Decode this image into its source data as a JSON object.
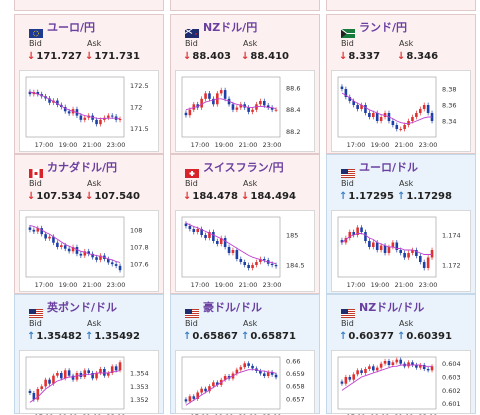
{
  "panels": [
    {
      "pair": "ユーロ/円",
      "flag": "eu-jp-flag",
      "theme": "pink",
      "bid_label": "Bid",
      "ask_label": "Ask",
      "bid": "171.727",
      "ask": "171.731",
      "direction": "down",
      "chart_data": {
        "type": "candlestick",
        "x_ticks": [
          "17:00",
          "19:00",
          "21:00",
          "23:00"
        ],
        "y_ticks": [
          "172.5",
          "172",
          "171.5"
        ],
        "ylim": [
          171.3,
          172.7
        ],
        "closes": [
          172.3,
          172.35,
          172.3,
          172.25,
          172.2,
          172.1,
          172.15,
          172.05,
          172.0,
          171.9,
          171.85,
          171.95,
          171.8,
          171.7,
          171.75,
          171.8,
          171.7,
          171.6,
          171.7,
          171.75,
          171.8,
          171.78,
          171.7,
          171.72
        ],
        "ma": [
          172.35,
          172.33,
          172.3,
          172.27,
          172.23,
          172.18,
          172.13,
          172.08,
          172.02,
          171.97,
          171.93,
          171.9,
          171.87,
          171.83,
          171.8,
          171.78,
          171.76,
          171.74,
          171.73,
          171.73,
          171.74,
          171.74,
          171.74,
          171.73
        ]
      }
    },
    {
      "pair": "NZドル/円",
      "flag": "nz-jp-flag",
      "theme": "pink",
      "bid_label": "Bid",
      "ask_label": "Ask",
      "bid": "88.403",
      "ask": "88.410",
      "direction": "down",
      "chart_data": {
        "type": "candlestick",
        "x_ticks": [
          "17:00",
          "19:00",
          "21:00",
          "23:00"
        ],
        "y_ticks": [
          "88.6",
          "88.4",
          "88.2"
        ],
        "ylim": [
          88.15,
          88.7
        ],
        "closes": [
          88.35,
          88.4,
          88.45,
          88.42,
          88.5,
          88.55,
          88.5,
          88.45,
          88.55,
          88.58,
          88.5,
          88.45,
          88.4,
          88.42,
          88.45,
          88.42,
          88.38,
          88.4,
          88.45,
          88.48,
          88.44,
          88.42,
          88.4,
          88.4
        ],
        "ma": [
          88.4,
          88.41,
          88.42,
          88.43,
          88.45,
          88.47,
          88.48,
          88.49,
          88.5,
          88.5,
          88.49,
          88.48,
          88.46,
          88.45,
          88.44,
          88.43,
          88.42,
          88.42,
          88.43,
          88.43,
          88.43,
          88.42,
          88.42,
          88.41
        ]
      }
    },
    {
      "pair": "ランド/円",
      "flag": "za-jp-flag",
      "theme": "pink",
      "bid_label": "Bid",
      "ask_label": "Ask",
      "bid": "8.337",
      "ask": "8.346",
      "direction": "down",
      "chart_data": {
        "type": "candlestick",
        "x_ticks": [
          "17:00",
          "19:00",
          "21:00",
          "23:00"
        ],
        "y_ticks": [
          "8.38",
          "8.36",
          "8.34"
        ],
        "ylim": [
          8.32,
          8.395
        ],
        "closes": [
          8.38,
          8.37,
          8.365,
          8.36,
          8.355,
          8.36,
          8.35,
          8.345,
          8.35,
          8.34,
          8.345,
          8.35,
          8.34,
          8.335,
          8.33,
          8.33,
          8.335,
          8.34,
          8.345,
          8.35,
          8.355,
          8.36,
          8.35,
          8.34
        ],
        "ma": [
          8.375,
          8.372,
          8.369,
          8.365,
          8.362,
          8.36,
          8.357,
          8.354,
          8.352,
          8.35,
          8.348,
          8.347,
          8.345,
          8.343,
          8.34,
          8.338,
          8.337,
          8.337,
          8.338,
          8.34,
          8.342,
          8.344,
          8.345,
          8.345
        ]
      }
    },
    {
      "pair": "カナダドル/円",
      "flag": "ca-jp-flag",
      "theme": "pink",
      "bid_label": "Bid",
      "ask_label": "Ask",
      "bid": "107.534",
      "ask": "107.540",
      "direction": "down",
      "chart_data": {
        "type": "candlestick",
        "x_ticks": [
          "17:00",
          "19:00",
          "21:00",
          "23:00"
        ],
        "y_ticks": [
          "108",
          "107.8",
          "107.6"
        ],
        "ylim": [
          107.45,
          108.15
        ],
        "closes": [
          108.0,
          107.98,
          108.02,
          107.95,
          107.9,
          107.92,
          107.85,
          107.8,
          107.82,
          107.78,
          107.75,
          107.8,
          107.72,
          107.7,
          107.75,
          107.72,
          107.68,
          107.65,
          107.7,
          107.66,
          107.62,
          107.6,
          107.58,
          107.53
        ],
        "ma": [
          108.05,
          108.04,
          108.02,
          108.0,
          107.97,
          107.95,
          107.92,
          107.89,
          107.86,
          107.83,
          107.81,
          107.79,
          107.77,
          107.75,
          107.74,
          107.72,
          107.71,
          107.7,
          107.69,
          107.68,
          107.66,
          107.65,
          107.63,
          107.62
        ]
      }
    },
    {
      "pair": "スイスフラン/円",
      "flag": "ch-jp-flag",
      "theme": "pink",
      "bid_label": "Bid",
      "ask_label": "Ask",
      "bid": "184.478",
      "ask": "184.494",
      "direction": "down",
      "chart_data": {
        "type": "candlestick",
        "x_ticks": [
          "17:00",
          "19:00",
          "21:00",
          "23:00"
        ],
        "y_ticks": [
          "185",
          "184.5"
        ],
        "ylim": [
          184.3,
          185.3
        ],
        "closes": [
          185.15,
          185.1,
          185.05,
          185.1,
          185.0,
          184.95,
          185.05,
          184.9,
          184.85,
          184.95,
          184.8,
          184.7,
          184.75,
          184.6,
          184.55,
          184.5,
          184.45,
          184.5,
          184.55,
          184.6,
          184.58,
          184.52,
          184.5,
          184.48
        ],
        "ma": [
          185.2,
          185.17,
          185.14,
          185.12,
          185.09,
          185.06,
          185.03,
          185.0,
          184.97,
          184.94,
          184.9,
          184.86,
          184.82,
          184.78,
          184.74,
          184.7,
          184.66,
          184.63,
          184.61,
          184.59,
          184.57,
          184.55,
          184.54,
          184.52
        ]
      }
    },
    {
      "pair": "ユーロ/ドル",
      "flag": "eu-us-flag",
      "theme": "blue",
      "bid_label": "Bid",
      "ask_label": "Ask",
      "bid": "1.17295",
      "ask": "1.17298",
      "direction": "up",
      "chart_data": {
        "type": "candlestick",
        "x_ticks": [
          "17:00",
          "19:00",
          "21:00",
          "23:00"
        ],
        "y_ticks": [
          "1.174",
          "1.172"
        ],
        "ylim": [
          1.1712,
          1.1752
        ],
        "closes": [
          1.1735,
          1.1738,
          1.1742,
          1.174,
          1.1745,
          1.1742,
          1.1736,
          1.1732,
          1.1735,
          1.173,
          1.1733,
          1.1728,
          1.1732,
          1.1735,
          1.173,
          1.1728,
          1.1725,
          1.1728,
          1.173,
          1.1726,
          1.1722,
          1.1718,
          1.1725,
          1.173
        ],
        "ma": [
          1.1735,
          1.1737,
          1.1739,
          1.174,
          1.1741,
          1.1741,
          1.174,
          1.1738,
          1.1737,
          1.1735,
          1.1734,
          1.1733,
          1.1732,
          1.1732,
          1.1731,
          1.1731,
          1.173,
          1.173,
          1.173,
          1.1729,
          1.1728,
          1.1727,
          1.1727,
          1.1727
        ]
      }
    },
    {
      "pair": "英ポンド/ドル",
      "flag": "gb-us-flag",
      "theme": "blue",
      "bid_label": "Bid",
      "ask_label": "Ask",
      "bid": "1.35482",
      "ask": "1.35492",
      "direction": "up",
      "chart_data": {
        "type": "candlestick",
        "x_ticks": [
          "17:00",
          "19:00",
          "21:00",
          "23:00"
        ],
        "y_ticks": [
          "1.354",
          "1.353",
          "1.352"
        ],
        "ylim": [
          1.3513,
          1.3552
        ],
        "closes": [
          1.3525,
          1.352,
          1.3528,
          1.353,
          1.3535,
          1.3532,
          1.3538,
          1.354,
          1.3536,
          1.3542,
          1.3538,
          1.3535,
          1.354,
          1.3537,
          1.3542,
          1.354,
          1.3536,
          1.354,
          1.3543,
          1.3538,
          1.354,
          1.3545,
          1.3542,
          1.3548
        ],
        "ma": [
          1.3518,
          1.352,
          1.3522,
          1.3525,
          1.3528,
          1.353,
          1.3532,
          1.3534,
          1.3535,
          1.3536,
          1.3537,
          1.3537,
          1.3538,
          1.3538,
          1.3539,
          1.3539,
          1.3539,
          1.354,
          1.354,
          1.354,
          1.354,
          1.3541,
          1.3541,
          1.3542
        ]
      }
    },
    {
      "pair": "豪ドル/ドル",
      "flag": "au-us-flag",
      "theme": "blue",
      "bid_label": "Bid",
      "ask_label": "Ask",
      "bid": "0.65867",
      "ask": "0.65871",
      "direction": "up",
      "chart_data": {
        "type": "candlestick",
        "x_ticks": [
          "17:00",
          "19:00",
          "21:00",
          "23:00"
        ],
        "y_ticks": [
          "0.66",
          "0.659",
          "0.658",
          "0.657"
        ],
        "ylim": [
          0.6562,
          0.6603
        ],
        "closes": [
          0.6568,
          0.6572,
          0.657,
          0.6575,
          0.6578,
          0.6576,
          0.658,
          0.6583,
          0.6581,
          0.6585,
          0.6588,
          0.6586,
          0.659,
          0.6593,
          0.6595,
          0.6598,
          0.6596,
          0.6594,
          0.6592,
          0.659,
          0.6588,
          0.6591,
          0.6589,
          0.6587
        ],
        "ma": [
          0.6565,
          0.6567,
          0.6569,
          0.6571,
          0.6573,
          0.6575,
          0.6577,
          0.6579,
          0.6581,
          0.6583,
          0.6585,
          0.6587,
          0.6588,
          0.659,
          0.6591,
          0.6592,
          0.6593,
          0.6593,
          0.6593,
          0.6592,
          0.6592,
          0.6591,
          0.6591,
          0.659
        ]
      }
    },
    {
      "pair": "NZドル/ドル",
      "flag": "nz-us-flag",
      "theme": "blue",
      "bid_label": "Bid",
      "ask_label": "Ask",
      "bid": "0.60377",
      "ask": "0.60391",
      "direction": "up",
      "chart_data": {
        "type": "candlestick",
        "x_ticks": [
          "17:00",
          "19:00",
          "21:00",
          "23:00"
        ],
        "y_ticks": [
          "0.604",
          "0.603",
          "0.602",
          "0.601"
        ],
        "ylim": [
          0.6006,
          0.6045
        ],
        "closes": [
          0.6025,
          0.603,
          0.6028,
          0.6032,
          0.6035,
          0.6033,
          0.6036,
          0.6038,
          0.6035,
          0.6037,
          0.604,
          0.6042,
          0.6039,
          0.6041,
          0.6043,
          0.604,
          0.6038,
          0.6041,
          0.6039,
          0.6037,
          0.6039,
          0.6036,
          0.6035,
          0.6038
        ],
        "ma": [
          0.602,
          0.6022,
          0.6024,
          0.6026,
          0.6028,
          0.603,
          0.6031,
          0.6032,
          0.6033,
          0.6034,
          0.6035,
          0.6036,
          0.6037,
          0.6038,
          0.6038,
          0.6039,
          0.6039,
          0.6039,
          0.6039,
          0.6039,
          0.6039,
          0.6038,
          0.6038,
          0.6038
        ]
      }
    }
  ]
}
